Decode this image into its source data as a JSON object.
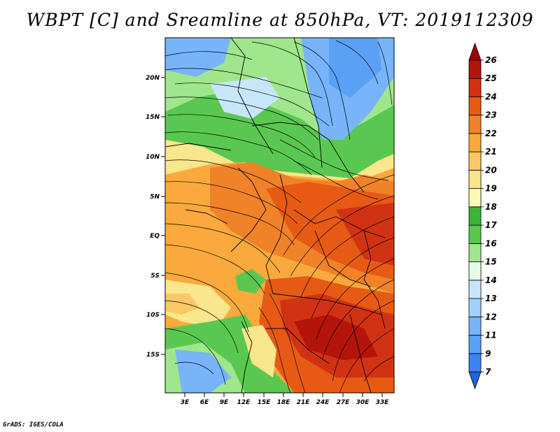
{
  "title": "WBPT [C] and Sreamline at 850hPa, VT: 2019112309",
  "credit": "GrADS: IGES/COLA",
  "map": {
    "lat_labels": [
      "20N",
      "15N",
      "10N",
      "5N",
      "EQ",
      "5S",
      "10S",
      "15S"
    ],
    "lon_labels": [
      "3E",
      "6E",
      "9E",
      "12E",
      "15E",
      "18E",
      "21E",
      "24E",
      "27E",
      "30E",
      "33E"
    ]
  },
  "colorbar": {
    "labels": [
      "7",
      "9",
      "11",
      "12",
      "13",
      "14",
      "15",
      "16",
      "17",
      "18",
      "19",
      "20",
      "21",
      "22",
      "23",
      "24",
      "25",
      "26"
    ],
    "colors": [
      "#1e64dc",
      "#3c82f0",
      "#5aa0f5",
      "#78b4fa",
      "#a0d2fa",
      "#c8e6fa",
      "#e6fae6",
      "#a0e68c",
      "#5ac850",
      "#3cb43c",
      "#fafab4",
      "#fae68c",
      "#fac864",
      "#faaa3c",
      "#f08228",
      "#e65a14",
      "#d23214",
      "#b4140a",
      "#a00000"
    ]
  }
}
